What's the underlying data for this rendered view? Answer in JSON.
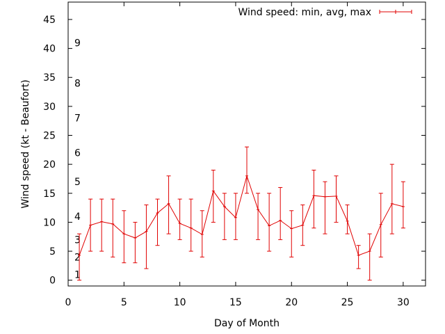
{
  "chart_data": {
    "type": "line",
    "xlabel": "Day of Month",
    "ylabel": "Wind speed (kt - Beaufort)",
    "xlim": [
      0,
      32
    ],
    "ylim": [
      -1,
      48
    ],
    "x_ticks": [
      0,
      5,
      10,
      15,
      20,
      25,
      30
    ],
    "y_ticks": [
      0,
      5,
      10,
      15,
      20,
      25,
      30,
      35,
      40,
      45
    ],
    "grid": false,
    "legend_position": "top-right",
    "beaufort_labels": [
      {
        "label": "1",
        "y": 1
      },
      {
        "label": "2",
        "y": 4
      },
      {
        "label": "3",
        "y": 7
      },
      {
        "label": "4",
        "y": 11
      },
      {
        "label": "5",
        "y": 17
      },
      {
        "label": "6",
        "y": 22
      },
      {
        "label": "7",
        "y": 28
      },
      {
        "label": "8",
        "y": 34
      },
      {
        "label": "9",
        "y": 41
      }
    ],
    "series": [
      {
        "name": "Wind speed: min, avg, max",
        "color": "#e00000",
        "x": [
          1,
          2,
          3,
          4,
          5,
          6,
          7,
          8,
          9,
          10,
          11,
          12,
          13,
          14,
          15,
          16,
          17,
          18,
          19,
          20,
          21,
          22,
          23,
          24,
          25,
          26,
          27,
          28,
          29,
          30
        ],
        "avg": [
          4.3,
          9.5,
          10.1,
          9.7,
          8,
          7.3,
          8.4,
          11.6,
          13.2,
          9.8,
          9,
          7.9,
          15.4,
          12.7,
          10.8,
          18,
          12.2,
          9.4,
          10.3,
          8.9,
          9.5,
          14.6,
          14.4,
          14.5,
          10.2,
          4.3,
          5,
          9.6,
          13.2,
          12.7
        ],
        "min": [
          0,
          5,
          5,
          4,
          3,
          3,
          2,
          6,
          8,
          7,
          5,
          4,
          10,
          7,
          7,
          15,
          7,
          5,
          7,
          4,
          6,
          9,
          8,
          10,
          8,
          2,
          0,
          4,
          8,
          9
        ],
        "max": [
          8,
          14,
          14,
          14,
          12,
          10,
          13,
          14,
          18,
          14,
          14,
          12,
          19,
          15,
          15,
          23,
          15,
          15,
          16,
          12,
          13,
          19,
          17,
          18,
          13,
          6,
          8,
          15,
          20,
          17
        ]
      }
    ]
  }
}
